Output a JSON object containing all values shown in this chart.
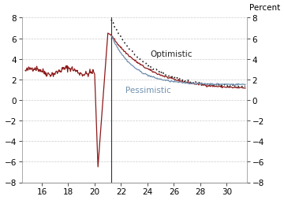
{
  "title": "Percent",
  "xlim": [
    14.5,
    31.5
  ],
  "ylim": [
    -8,
    8
  ],
  "yticks": [
    -8,
    -6,
    -4,
    -2,
    0,
    2,
    4,
    6,
    8
  ],
  "xticks": [
    16,
    18,
    20,
    22,
    24,
    26,
    28,
    30
  ],
  "vline_x": 21.25,
  "background_color": "#ffffff",
  "grid_color": "#cccccc",
  "label_optimistic": "Optimistic",
  "label_pessimistic": "Pessimistic",
  "color_historical": "#8B1A1A",
  "color_baseline": "#8B1A1A",
  "color_optimistic": "#222222",
  "color_pessimistic": "#7090b0",
  "font_size_ticks": 7.5,
  "font_size_label": 7.5,
  "font_size_title": 7.5
}
